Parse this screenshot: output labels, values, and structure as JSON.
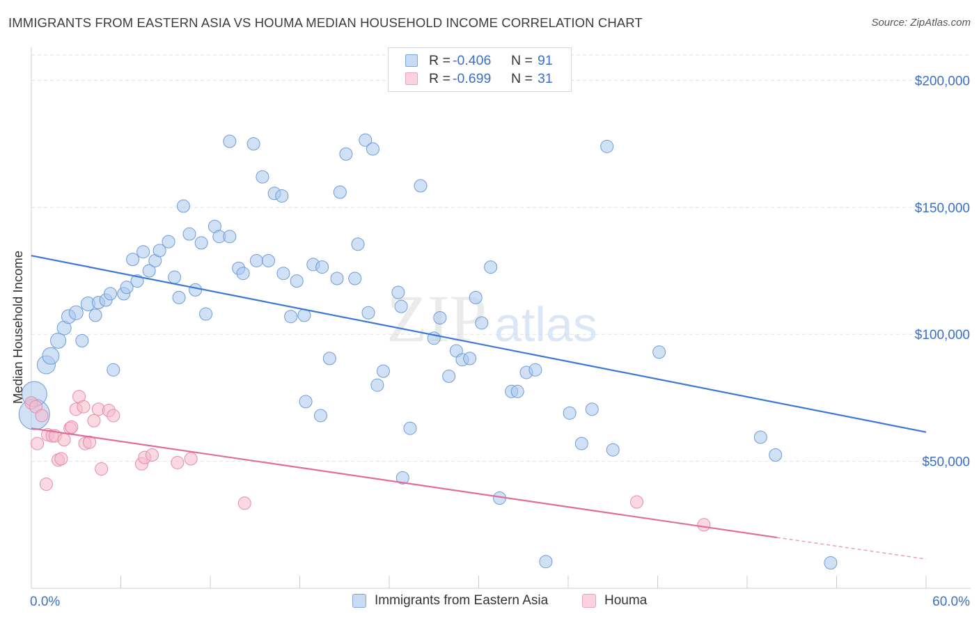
{
  "header": {
    "title": "IMMIGRANTS FROM EASTERN ASIA VS HOUMA MEDIAN HOUSEHOLD INCOME CORRELATION CHART",
    "source": "Source: ZipAtlas.com"
  },
  "watermark": {
    "part1": "ZIP",
    "part2": "atlas"
  },
  "legend": {
    "rows": [
      {
        "r_label": "R =",
        "r_value": "-0.406",
        "n_label": "N =",
        "n_value": "91",
        "color": "#a9c8ef"
      },
      {
        "r_label": "R =",
        "r_value": "-0.699",
        "n_label": "N =",
        "n_value": "31",
        "color": "#f6b9cc"
      }
    ]
  },
  "bottom_legend": {
    "items": [
      {
        "label": "Immigrants from Eastern Asia",
        "color": "#a9c8ef"
      },
      {
        "label": "Houma",
        "color": "#f6b9cc"
      }
    ]
  },
  "chart_data": {
    "type": "scatter",
    "title": "IMMIGRANTS FROM EASTERN ASIA VS HOUMA MEDIAN HOUSEHOLD INCOME CORRELATION CHART",
    "xlabel": "",
    "ylabel": "Median Household Income",
    "xlim": [
      0,
      60
    ],
    "ylim": [
      0,
      210000
    ],
    "x_tick_labels": [
      "0.0%",
      "60.0%"
    ],
    "y_ticks": [
      50000,
      100000,
      150000,
      200000
    ],
    "y_tick_labels": [
      "$50,000",
      "$100,000",
      "$150,000",
      "$200,000"
    ],
    "grid": true,
    "legend_position": "top-center",
    "colors": {
      "blue": "#3a78d4",
      "pink": "#e06c9a",
      "tick_label": "#3a6fc8"
    },
    "series": [
      {
        "name": "Immigrants from Eastern Asia",
        "color": "#a9c8ef",
        "stroke": "#6e9bd6",
        "trend": {
          "x": [
            0,
            60
          ],
          "y": [
            131000,
            61500
          ]
        },
        "points": [
          [
            0.2,
            68500,
            22
          ],
          [
            0.2,
            76500,
            18
          ],
          [
            1.0,
            88000,
            13
          ],
          [
            1.3,
            91500,
            12
          ],
          [
            1.8,
            97500,
            11
          ],
          [
            2.2,
            102500,
            10
          ],
          [
            2.5,
            107000,
            10
          ],
          [
            3.0,
            108500,
            10
          ],
          [
            3.4,
            97500,
            9
          ],
          [
            3.8,
            112000,
            10
          ],
          [
            4.3,
            107500,
            9
          ],
          [
            4.5,
            112500,
            9
          ],
          [
            5.0,
            113500,
            9
          ],
          [
            5.3,
            116000,
            9
          ],
          [
            5.5,
            86000,
            9
          ],
          [
            6.2,
            116000,
            9
          ],
          [
            6.4,
            118500,
            9
          ],
          [
            6.8,
            129500,
            9
          ],
          [
            7.1,
            121000,
            9
          ],
          [
            7.5,
            132500,
            9
          ],
          [
            7.9,
            125000,
            9
          ],
          [
            8.3,
            129000,
            9
          ],
          [
            8.6,
            133000,
            9
          ],
          [
            9.2,
            136500,
            9
          ],
          [
            9.6,
            122500,
            9
          ],
          [
            9.9,
            114500,
            9
          ],
          [
            10.2,
            150500,
            9
          ],
          [
            10.6,
            139500,
            9
          ],
          [
            11.0,
            117500,
            9
          ],
          [
            11.4,
            136000,
            9
          ],
          [
            11.7,
            108000,
            9
          ],
          [
            12.3,
            142500,
            9
          ],
          [
            12.6,
            138500,
            9
          ],
          [
            13.3,
            138500,
            9
          ],
          [
            13.9,
            126000,
            9
          ],
          [
            13.3,
            176000,
            9
          ],
          [
            14.2,
            124000,
            9
          ],
          [
            14.9,
            175000,
            9
          ],
          [
            15.1,
            129000,
            9
          ],
          [
            15.5,
            162000,
            9
          ],
          [
            15.9,
            129000,
            9
          ],
          [
            16.3,
            155500,
            9
          ],
          [
            16.8,
            154500,
            9
          ],
          [
            16.9,
            124000,
            9
          ],
          [
            17.4,
            107000,
            9
          ],
          [
            17.8,
            121000,
            9
          ],
          [
            18.3,
            107500,
            9
          ],
          [
            18.4,
            73500,
            9
          ],
          [
            18.9,
            127500,
            9
          ],
          [
            19.4,
            68000,
            9
          ],
          [
            19.5,
            126500,
            9
          ],
          [
            20.0,
            90500,
            9
          ],
          [
            20.5,
            122000,
            9
          ],
          [
            20.7,
            156000,
            9
          ],
          [
            21.1,
            171000,
            9
          ],
          [
            21.7,
            122000,
            9
          ],
          [
            21.9,
            135500,
            9
          ],
          [
            22.4,
            176500,
            9
          ],
          [
            22.6,
            108500,
            9
          ],
          [
            22.9,
            173000,
            9
          ],
          [
            23.2,
            80000,
            9
          ],
          [
            23.6,
            85500,
            9
          ],
          [
            24.6,
            116500,
            9
          ],
          [
            24.8,
            111000,
            9
          ],
          [
            25.4,
            63000,
            9
          ],
          [
            24.9,
            43500,
            9
          ],
          [
            26.1,
            158500,
            9
          ],
          [
            27.4,
            106500,
            9
          ],
          [
            27.0,
            98500,
            9
          ],
          [
            28.0,
            83500,
            9
          ],
          [
            28.5,
            93500,
            9
          ],
          [
            28.9,
            90000,
            9
          ],
          [
            29.4,
            90500,
            9
          ],
          [
            29.8,
            114500,
            9
          ],
          [
            30.2,
            104500,
            9
          ],
          [
            30.8,
            126500,
            9
          ],
          [
            31.4,
            35500,
            9
          ],
          [
            32.2,
            77500,
            9
          ],
          [
            32.6,
            77500,
            9
          ],
          [
            33.2,
            85000,
            9
          ],
          [
            33.8,
            86000,
            9
          ],
          [
            34.5,
            10500,
            9
          ],
          [
            36.1,
            69000,
            9
          ],
          [
            36.9,
            57000,
            9
          ],
          [
            37.6,
            70500,
            9
          ],
          [
            38.6,
            174000,
            9
          ],
          [
            39.0,
            54500,
            9
          ],
          [
            42.1,
            93000,
            9
          ],
          [
            48.9,
            59500,
            9
          ],
          [
            49.9,
            52500,
            9
          ],
          [
            53.6,
            10000,
            9
          ]
        ]
      },
      {
        "name": "Houma",
        "color": "#f6b9cc",
        "stroke": "#e68aa8",
        "trend": {
          "x": [
            0,
            50
          ],
          "y": [
            63000,
            20000
          ],
          "dash_to": [
            60,
            11500
          ]
        },
        "points": [
          [
            0.0,
            73000,
            9
          ],
          [
            0.3,
            71500,
            9
          ],
          [
            0.4,
            57000,
            9
          ],
          [
            0.7,
            68000,
            9
          ],
          [
            1.0,
            41000,
            9
          ],
          [
            1.1,
            60500,
            9
          ],
          [
            1.4,
            60000,
            9
          ],
          [
            1.6,
            60000,
            9
          ],
          [
            1.8,
            50500,
            9
          ],
          [
            2.0,
            51000,
            9
          ],
          [
            2.2,
            58500,
            9
          ],
          [
            2.6,
            63000,
            9
          ],
          [
            2.7,
            63500,
            9
          ],
          [
            3.0,
            70500,
            9
          ],
          [
            3.2,
            75500,
            9
          ],
          [
            3.5,
            71500,
            9
          ],
          [
            3.6,
            57000,
            9
          ],
          [
            3.9,
            57500,
            9
          ],
          [
            4.2,
            66000,
            9
          ],
          [
            4.5,
            70500,
            9
          ],
          [
            4.7,
            47000,
            9
          ],
          [
            5.2,
            70000,
            9
          ],
          [
            5.5,
            68000,
            9
          ],
          [
            7.4,
            49000,
            9
          ],
          [
            7.6,
            51500,
            9
          ],
          [
            8.1,
            52500,
            9
          ],
          [
            9.8,
            49500,
            9
          ],
          [
            10.7,
            51000,
            9
          ],
          [
            14.3,
            33500,
            9
          ],
          [
            40.6,
            34000,
            9
          ],
          [
            45.1,
            25000,
            9
          ]
        ]
      }
    ]
  }
}
